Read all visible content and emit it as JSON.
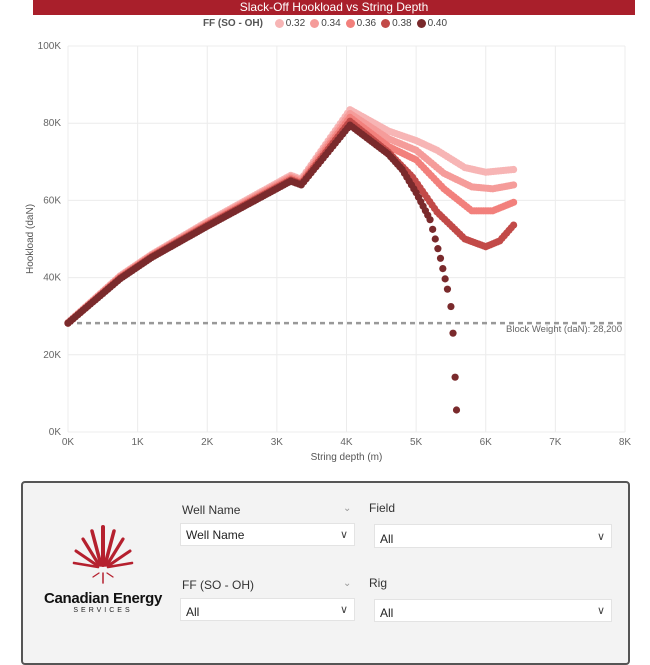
{
  "chart_data": {
    "type": "scatter",
    "title": "Slack-Off Hookload vs String Depth",
    "xlabel": "String depth (m)",
    "ylabel": "Hookload (daN)",
    "xlim": [
      0,
      8000
    ],
    "ylim": [
      0,
      100000
    ],
    "x_ticks": [
      "0K",
      "1K",
      "2K",
      "3K",
      "4K",
      "5K",
      "6K",
      "7K",
      "8K"
    ],
    "y_ticks": [
      "0K",
      "20K",
      "40K",
      "60K",
      "80K",
      "100K"
    ],
    "grid": true,
    "legend": {
      "title": "FF (SO - OH)",
      "placement": "top-center"
    },
    "reference_line": {
      "label": "Block Weight (daN): 28,200",
      "value": 28200
    },
    "series": [
      {
        "name": "0.32",
        "color": "#f7b5b5",
        "points": [
          [
            0,
            28400
          ],
          [
            750,
            40500
          ],
          [
            1200,
            46000
          ],
          [
            2000,
            54500
          ],
          [
            3200,
            66500
          ],
          [
            3350,
            65500
          ],
          [
            4050,
            83500
          ],
          [
            4600,
            78000
          ],
          [
            5000,
            75500
          ],
          [
            5300,
            73000
          ],
          [
            5700,
            68500
          ],
          [
            6000,
            67300
          ],
          [
            6400,
            68000
          ]
        ]
      },
      {
        "name": "0.34",
        "color": "#f59c9a",
        "points": [
          [
            0,
            28300
          ],
          [
            750,
            40300
          ],
          [
            1200,
            45800
          ],
          [
            2000,
            54200
          ],
          [
            3200,
            66100
          ],
          [
            3350,
            65100
          ],
          [
            4050,
            82500
          ],
          [
            4600,
            76000
          ],
          [
            5000,
            73000
          ],
          [
            5400,
            67000
          ],
          [
            5800,
            63500
          ],
          [
            6100,
            63000
          ],
          [
            6400,
            64000
          ]
        ]
      },
      {
        "name": "0.36",
        "color": "#f2807c",
        "points": [
          [
            0,
            28200
          ],
          [
            750,
            40100
          ],
          [
            1200,
            45600
          ],
          [
            2000,
            53900
          ],
          [
            3200,
            65700
          ],
          [
            3350,
            64700
          ],
          [
            4050,
            81500
          ],
          [
            4600,
            74000
          ],
          [
            5000,
            70500
          ],
          [
            5400,
            63000
          ],
          [
            5800,
            57300
          ],
          [
            6100,
            57300
          ],
          [
            6400,
            59500
          ]
        ]
      },
      {
        "name": "0.38",
        "color": "#c24a48",
        "points": [
          [
            0,
            28200
          ],
          [
            750,
            39900
          ],
          [
            1200,
            45400
          ],
          [
            2000,
            53600
          ],
          [
            3200,
            65300
          ],
          [
            3350,
            64300
          ],
          [
            4050,
            80500
          ],
          [
            4600,
            72500
          ],
          [
            4950,
            66000
          ],
          [
            5300,
            57000
          ],
          [
            5700,
            50000
          ],
          [
            6000,
            48000
          ],
          [
            6200,
            49500
          ],
          [
            6400,
            53600
          ]
        ]
      },
      {
        "name": "0.40",
        "color": "#7a2a2c",
        "points": [
          [
            0,
            28200
          ],
          [
            750,
            39700
          ],
          [
            1200,
            45200
          ],
          [
            2000,
            53300
          ],
          [
            3200,
            65000
          ],
          [
            3350,
            64000
          ],
          [
            4050,
            79500
          ],
          [
            4600,
            72000
          ],
          [
            4800,
            68000
          ],
          [
            5000,
            62000
          ],
          [
            5200,
            55000
          ],
          [
            5350,
            45000
          ],
          [
            5450,
            37000
          ],
          [
            5500,
            32500
          ]
        ],
        "tail_points": [
          [
            5530,
            25600
          ],
          [
            5560,
            14200
          ],
          [
            5580,
            5700
          ]
        ]
      }
    ]
  },
  "filters": {
    "well_name": {
      "label": "Well Name",
      "value": "Well Name"
    },
    "field": {
      "label": "Field",
      "value": "All"
    },
    "ff": {
      "label": "FF (SO - OH)",
      "value": "All"
    },
    "rig": {
      "label": "Rig",
      "value": "All"
    }
  },
  "logo": {
    "name": "Canadian Energy",
    "sub": "SERVICES"
  }
}
